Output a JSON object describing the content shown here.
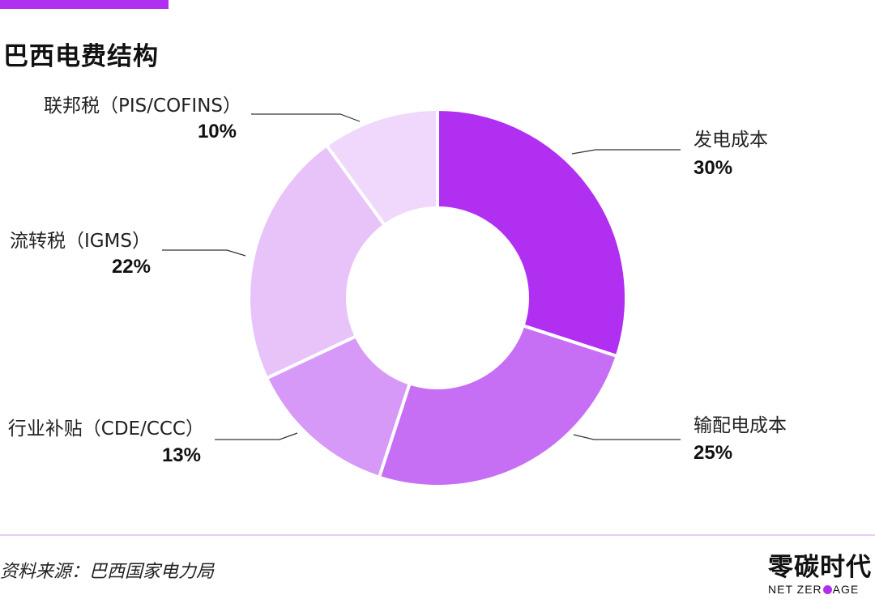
{
  "title": "巴西电费结构",
  "source": "资料来源：巴西国家电力局",
  "logo": {
    "cn": "零碳时代",
    "en_before": "NET ZER",
    "en_after": "AGE"
  },
  "colors": {
    "accent": "#b12ff0",
    "divider": "#e6ccf7",
    "leader_line": "#333333"
  },
  "chart_data": {
    "type": "pie",
    "donut": true,
    "start": "12 o'clock",
    "direction": "clockwise",
    "categories": [
      "发电成本",
      "输配电成本",
      "行业补贴（CDE/CCC）",
      "流转税（IGMS）",
      "联邦税（PIS/COFINS）"
    ],
    "values": [
      30,
      25,
      13,
      22,
      10
    ],
    "value_labels": [
      "30%",
      "25%",
      "13%",
      "22%",
      "10%"
    ],
    "slice_colors": [
      "#b12ff0",
      "#c66ff5",
      "#d699f7",
      "#e7c3fa",
      "#efd8fb"
    ]
  }
}
